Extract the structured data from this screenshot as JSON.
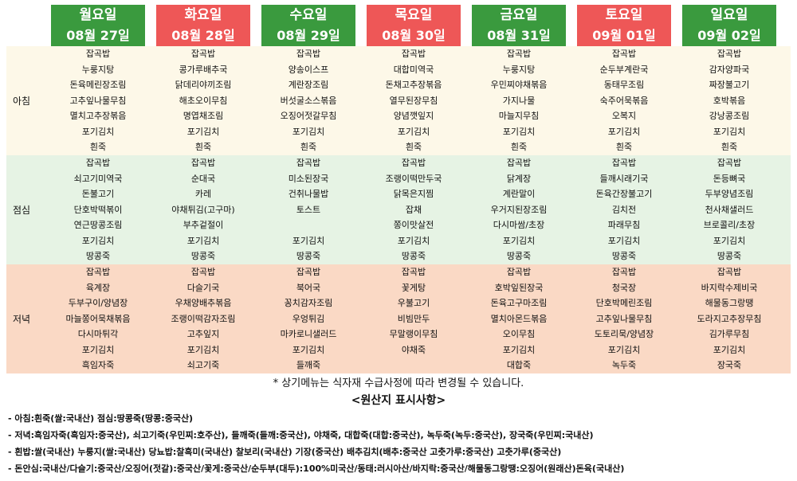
{
  "days": [
    {
      "day": "월요일",
      "date": "08월 27일",
      "color": "#3a9a3e"
    },
    {
      "day": "화요일",
      "date": "08월 28일",
      "color": "#ee5757"
    },
    {
      "day": "수요일",
      "date": "08월 29일",
      "color": "#3a9a3e"
    },
    {
      "day": "목요일",
      "date": "08월 30일",
      "color": "#ee5757"
    },
    {
      "day": "금요일",
      "date": "08월 31일",
      "color": "#3a9a3e"
    },
    {
      "day": "토요일",
      "date": "09월 01일",
      "color": "#ee5757"
    },
    {
      "day": "일요일",
      "date": "09월 02일",
      "color": "#3a9a3e"
    }
  ],
  "meals": [
    {
      "label": "아침",
      "items": [
        [
          "잡곡밥",
          "누룽지탕",
          "돈육메린장조림",
          "고추잎나물무침",
          "멸치고추장볶음",
          "포기김치",
          "흰죽"
        ],
        [
          "잡곡밥",
          "콩가루배추국",
          "닭데리야끼조림",
          "해초오이무침",
          "명엽채조림",
          "포기김치",
          "흰죽"
        ],
        [
          "잡곡밥",
          "양송이스프",
          "계란장조림",
          "버섯굴소스볶음",
          "오징어젓갈무침",
          "포기김치",
          "흰죽"
        ],
        [
          "잡곡밥",
          "대합미역국",
          "돈채고추장볶음",
          "열무된장무침",
          "양념깻잎지",
          "포기김치",
          "흰죽"
        ],
        [
          "잡곡밥",
          "누룽지탕",
          "우민찌야채볶음",
          "가지나물",
          "마늘지무침",
          "포기김치",
          "흰죽"
        ],
        [
          "잡곡밥",
          "순두부계란국",
          "동태무조림",
          "숙주어묵볶음",
          "오복지",
          "포기김치",
          "흰죽"
        ],
        [
          "잡곡밥",
          "감자양파국",
          "짜장불고기",
          "호박볶음",
          "강낭콩조림",
          "포기김치",
          "흰죽"
        ]
      ]
    },
    {
      "label": "점심",
      "items": [
        [
          "잡곡밥",
          "쇠고기미역국",
          "돈불고기",
          "단호박떡볶이",
          "연근땅콩조림",
          "포기김치",
          "땅콩죽"
        ],
        [
          "잡곡밥",
          "순대국",
          "카레",
          "야채튀김(고구마)",
          "부추겉절이",
          "포기김치",
          "땅콩죽"
        ],
        [
          "잡곡밥",
          "미소된장국",
          "건취나물밥",
          "토스트",
          "",
          "포기김치",
          "땅콩죽"
        ],
        [
          "잡곡밥",
          "조랭이떡만두국",
          "닭목은지찜",
          "잡채",
          "쫑이맛살전",
          "포기김치",
          "땅콩죽"
        ],
        [
          "잡곡밥",
          "닭계장",
          "계란말이",
          "우거지된장조림",
          "다시마쌈/초장",
          "포기김치",
          "땅콩죽"
        ],
        [
          "잡곡밥",
          "들깨시래기국",
          "돈육간장불고기",
          "김치전",
          "파래무침",
          "포기김치",
          "땅콩죽"
        ],
        [
          "잡곡밥",
          "돈등뼈국",
          "두부양념조림",
          "천사채샐러드",
          "브로콜리/초장",
          "포기김치",
          "땅콩죽"
        ]
      ]
    },
    {
      "label": "저녁",
      "items": [
        [
          "잡곡밥",
          "육계장",
          "두부구이/양념장",
          "마늘쫑어묵채볶음",
          "다시마튀각",
          "포기김치",
          "흑임자죽"
        ],
        [
          "잡곡밥",
          "다슬기국",
          "우채양배추볶음",
          "조랭이떡감자조림",
          "고추잎지",
          "포기김치",
          "쇠고기죽"
        ],
        [
          "잡곡밥",
          "북어국",
          "꽁치감자조림",
          "우엉튀김",
          "마카로니샐러드",
          "포기김치",
          "들깨죽"
        ],
        [
          "잡곡밥",
          "꽃게탕",
          "우불고기",
          "비빔만두",
          "무말랭이무침",
          "야채죽",
          ""
        ],
        [
          "잡곡밥",
          "호박잎된장국",
          "돈육고구마조림",
          "멸치아몬드볶음",
          "오이무침",
          "포기김치",
          "대합죽"
        ],
        [
          "잡곡밥",
          "청국장",
          "단호박메린조림",
          "고추잎나물무침",
          "도토리묵/양념장",
          "포기김치",
          "녹두죽"
        ],
        [
          "잡곡밥",
          "바지락수제비국",
          "해물동그랑땡",
          "도라지고추장무침",
          "김가루무침",
          "포기김치",
          "장국죽"
        ]
      ]
    }
  ],
  "note": "* 상기메뉴는 식자재 수급사정에 따라 변경될 수 있습니다.",
  "origin_title": "<원산지 표시사항>",
  "origin_lines": [
    "- 아침:흰죽(쌀:국내산) 점심:땅콩죽(땅콩:중국산)",
    "- 저녁:흑임자죽(흑임자:중국산), 쇠고기죽(우민찌:호주산), 들깨죽(들깨:중국산), 야채죽, 대합죽(대합:중국산), 녹두죽(녹두:중국산), 장국죽(우민찌:국내산)",
    "- 흰밥:쌀(국내산) 누룽지(쌀:국내산) 당뇨밥:찰흑미(국내산) 찰보리(국내산) 기장(중국산) 배추김치(배추:중국산 고춧가루:중국산) 고춧가루(중국산)",
    "- 돈안심:국내산/다슬기:중국산/오징어(젓갈):중국산/꽃게:중국산/순두부(대두):100%미국산/동태:러시아산/바지락:중국산/해물동그랑땡:오징어(원래산)돈육(국내산)"
  ]
}
